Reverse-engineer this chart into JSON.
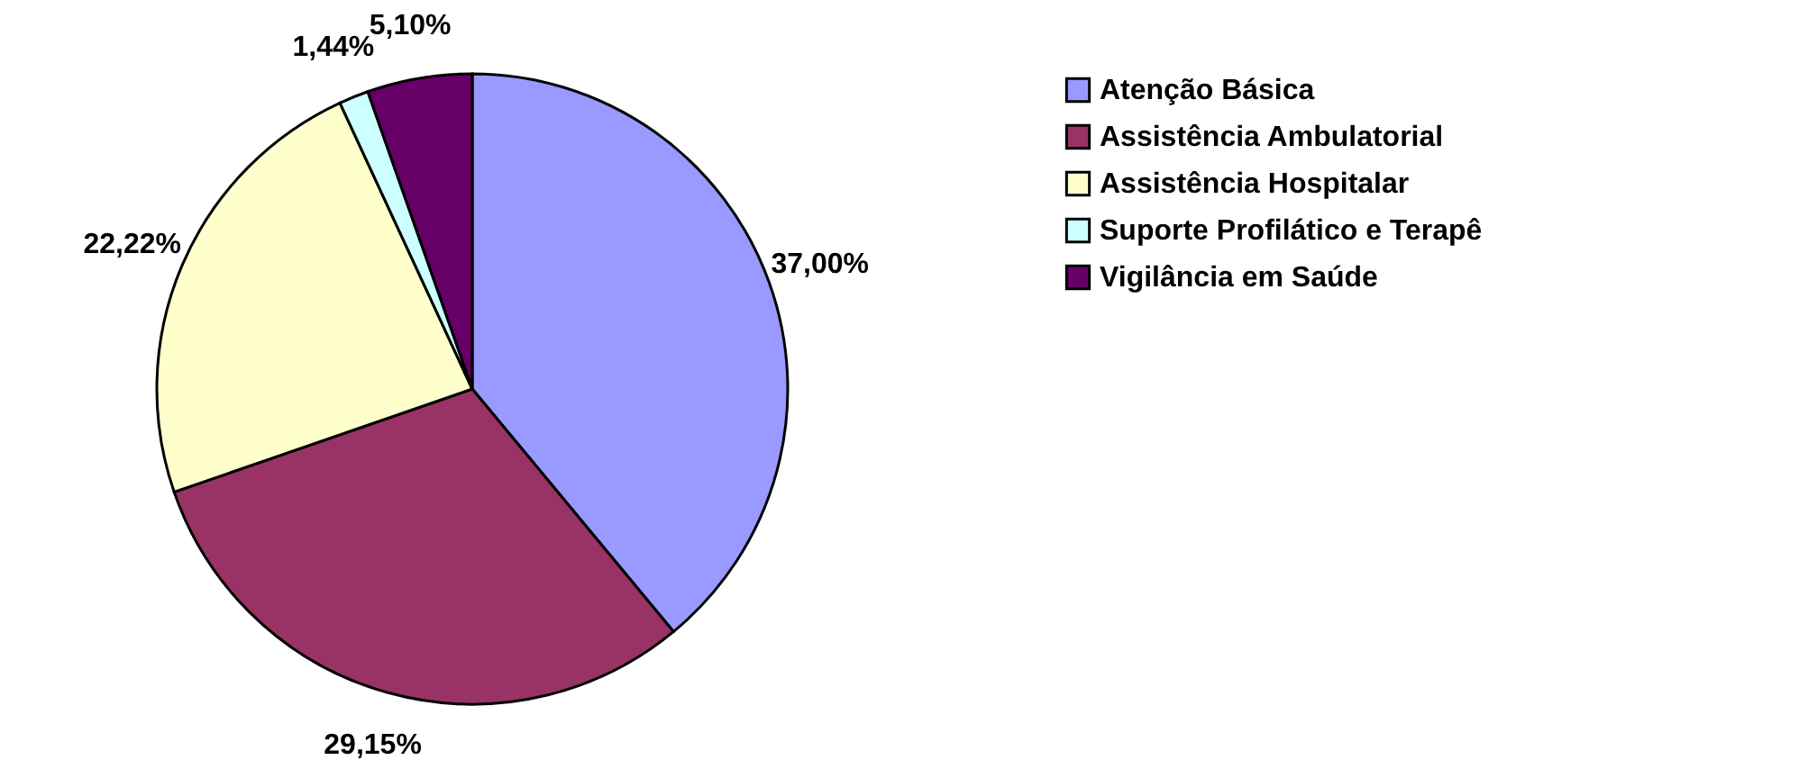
{
  "chart_data": {
    "type": "pie",
    "categories": [
      "Atenção Básica",
      "Assistência Ambulatorial",
      "Assistência Hospitalar",
      "Suporte Profilático e Terapê",
      "Vigilância em Saúde"
    ],
    "values": [
      37.0,
      29.15,
      22.22,
      1.44,
      5.1
    ],
    "value_labels": [
      "37,00%",
      "29,15%",
      "22,22%",
      "1,44%",
      "5,10%"
    ],
    "colors": [
      "#9999ff",
      "#993366",
      "#ffffcc",
      "#ccffff",
      "#660066"
    ],
    "legend": "top right"
  }
}
